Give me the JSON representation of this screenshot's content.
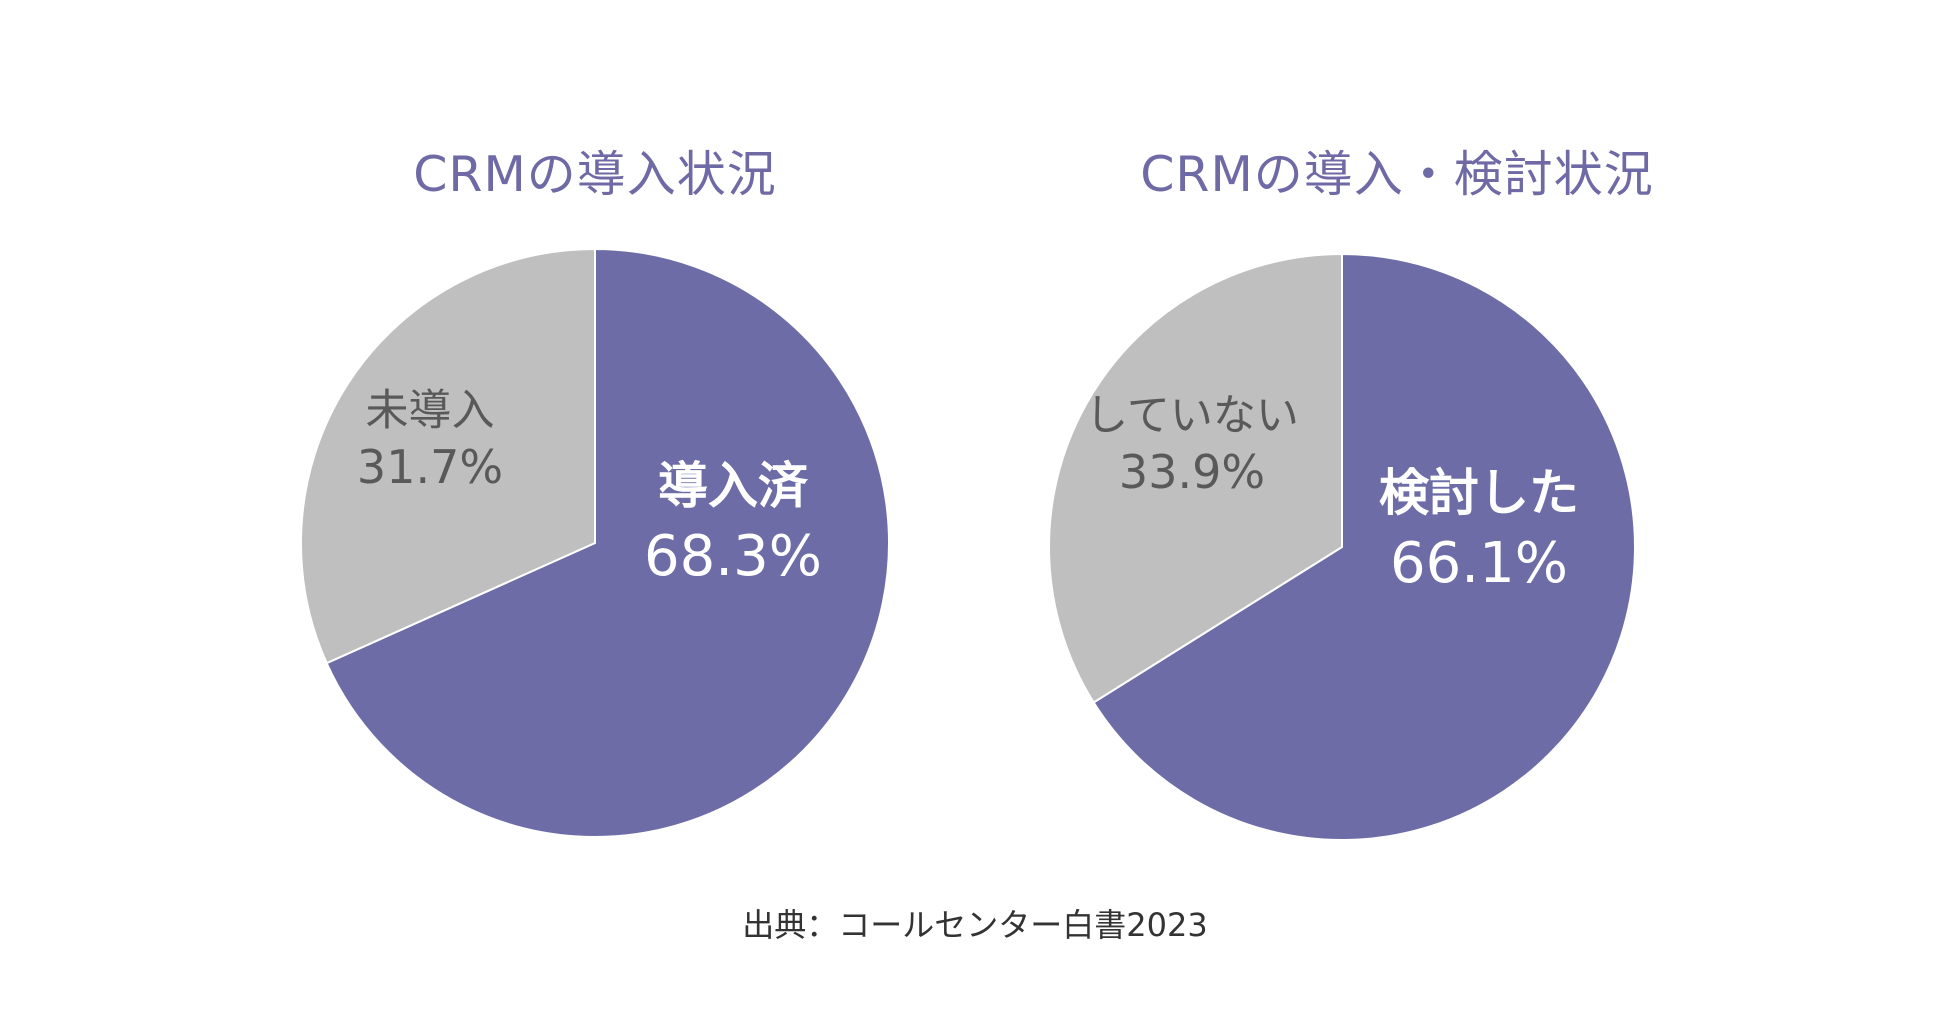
{
  "colors": {
    "primary": "#6e6ca7",
    "secondary": "#bfbfbf",
    "title": "#6f6aa5",
    "primary_label": "#ffffff",
    "secondary_label": "#595959"
  },
  "chart_data": [
    {
      "type": "pie",
      "title": "CRMの導入状況",
      "slices": [
        {
          "label": "導入済",
          "value": 68.3,
          "value_label": "68.3%",
          "color": "#6e6ca7"
        },
        {
          "label": "未導入",
          "value": 31.7,
          "value_label": "31.7%",
          "color": "#bfbfbf"
        }
      ]
    },
    {
      "type": "pie",
      "title": "CRMの導入・検討状況",
      "slices": [
        {
          "label": "検討した",
          "value": 66.1,
          "value_label": "66.1%",
          "color": "#6e6ca7"
        },
        {
          "label": "していない",
          "value": 33.9,
          "value_label": "33.9%",
          "color": "#bfbfbf"
        }
      ]
    }
  ],
  "source": "出典：コールセンター白書2023"
}
